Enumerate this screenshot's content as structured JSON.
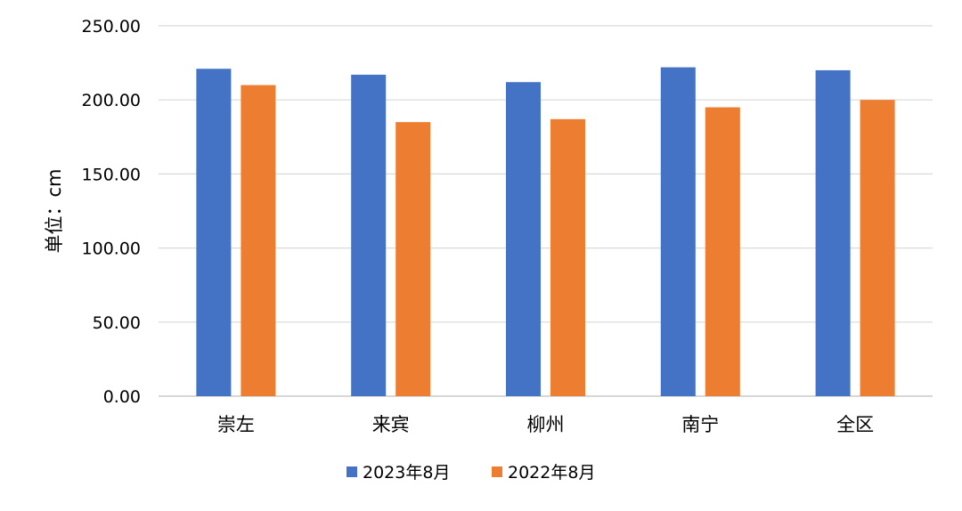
{
  "chart_data": {
    "type": "bar",
    "title": "",
    "xlabel": "",
    "ylabel": "单位：cm",
    "ylim": [
      0,
      250
    ],
    "y_ticks": [
      0,
      50,
      100,
      150,
      200,
      250
    ],
    "y_tick_labels": [
      "0.00",
      "50.00",
      "100.00",
      "150.00",
      "200.00",
      "250.00"
    ],
    "grid": true,
    "legend_position": "bottom",
    "categories": [
      "崇左",
      "来宾",
      "柳州",
      "南宁",
      "全区"
    ],
    "series": [
      {
        "name": "2023年8月",
        "color": "#4472C4",
        "values": [
          221,
          217,
          212,
          222,
          220
        ]
      },
      {
        "name": "2022年8月",
        "color": "#ED7D31",
        "values": [
          210,
          185,
          187,
          195,
          200
        ]
      }
    ]
  }
}
